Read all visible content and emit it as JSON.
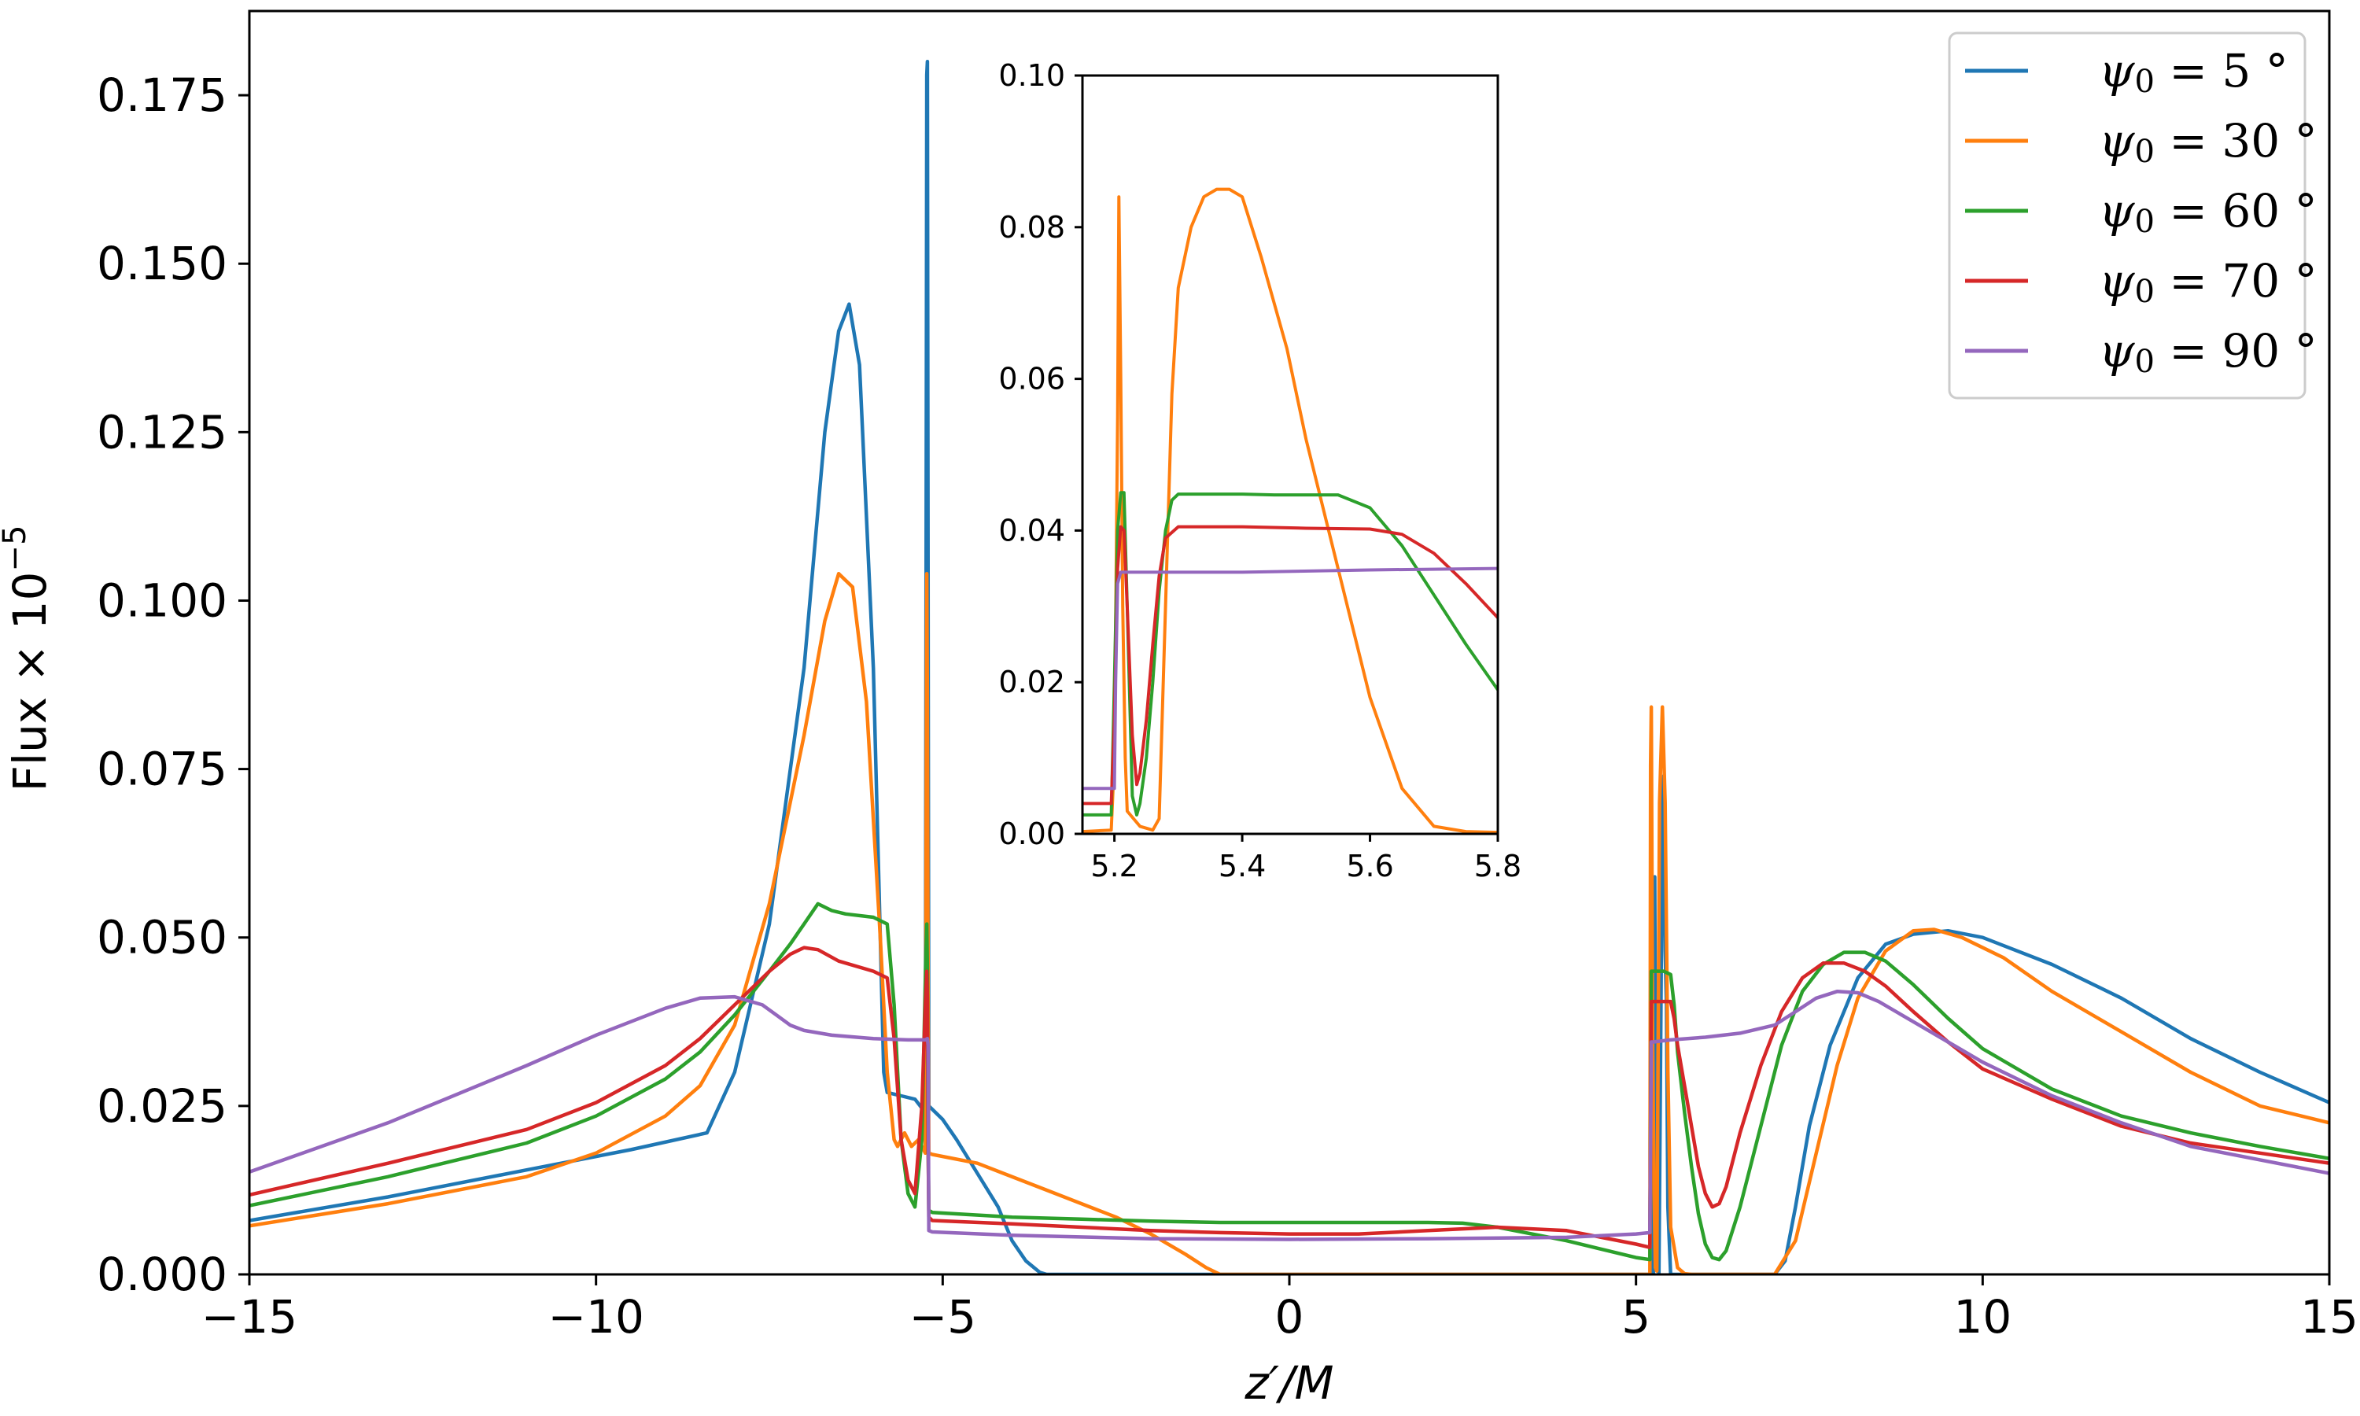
{
  "chart_data": [
    {
      "type": "line",
      "xlabel": "z′/M",
      "ylabel": "Flux × 10",
      "ylabel_exponent": "−5",
      "xlim": [
        -15,
        15
      ],
      "ylim": [
        0,
        0.1875
      ],
      "xticks": [
        -15,
        -10,
        -5,
        0,
        5,
        10,
        15
      ],
      "xtick_labels": [
        "−15",
        "−10",
        "−5",
        "0",
        "5",
        "10",
        "15"
      ],
      "yticks": [
        0,
        0.025,
        0.05,
        0.075,
        0.1,
        0.125,
        0.15,
        0.175
      ],
      "ytick_labels": [
        "0.000",
        "0.025",
        "0.050",
        "0.075",
        "0.100",
        "0.125",
        "0.150",
        "0.175"
      ],
      "grid": false,
      "legend_position": "top-right",
      "series": [
        {
          "name": "ψ0 = 5 °",
          "label_sym": "ψ",
          "label_sub": "0",
          "label_rest": " = 5 °",
          "color": "#1f77b4",
          "x": [
            -15,
            -13,
            -11,
            -9.5,
            -8.4,
            -8.0,
            -7.5,
            -7.0,
            -6.7,
            -6.5,
            -6.35,
            -6.2,
            -6.0,
            -5.9,
            -5.85,
            -5.8,
            -5.6,
            -5.4,
            -5.25,
            -5.23,
            -5.22,
            -5.21,
            -5.2,
            -5.15,
            -5.0,
            -4.8,
            -4.5,
            -4.2,
            -4.0,
            -3.8,
            -3.6,
            -3.5,
            0,
            5.0,
            5.25,
            5.27,
            5.29,
            5.31,
            5.33,
            5.36,
            5.38,
            5.4,
            5.42,
            5.44,
            5.46,
            5.5,
            6,
            7.0,
            7.15,
            7.3,
            7.5,
            7.8,
            8.2,
            8.6,
            9.0,
            9.5,
            10,
            11,
            12,
            13,
            14,
            15
          ],
          "y": [
            0.008,
            0.0115,
            0.0155,
            0.0185,
            0.021,
            0.03,
            0.052,
            0.09,
            0.125,
            0.14,
            0.144,
            0.135,
            0.09,
            0.05,
            0.03,
            0.027,
            0.0265,
            0.026,
            0.024,
            0.178,
            0.18,
            0.1,
            0.025,
            0.0245,
            0.023,
            0.02,
            0.015,
            0.01,
            0.005,
            0.002,
            0.0003,
            0,
            0,
            0,
            0,
            0.059,
            0.003,
            0.04,
            0,
            0.04,
            0.07,
            0.074,
            0.048,
            0.04,
            0.01,
            0,
            0,
            0,
            0.002,
            0.01,
            0.022,
            0.034,
            0.044,
            0.049,
            0.0505,
            0.051,
            0.05,
            0.046,
            0.041,
            0.035,
            0.03,
            0.0255
          ]
        },
        {
          "name": "ψ0 = 30 °",
          "label_sym": "ψ",
          "label_sub": "0",
          "label_rest": " = 30 °",
          "color": "#ff7f0e",
          "x": [
            -15,
            -13,
            -11,
            -10,
            -9,
            -8.5,
            -8.0,
            -7.5,
            -7.0,
            -6.7,
            -6.5,
            -6.3,
            -6.1,
            -5.9,
            -5.8,
            -5.7,
            -5.65,
            -5.55,
            -5.45,
            -5.35,
            -5.25,
            -5.23,
            -5.22,
            -5.21,
            -5.2,
            -5.15,
            -4.5,
            -3.5,
            -2.5,
            -2.0,
            -1.5,
            -1.2,
            -1.0,
            0,
            5.0,
            5.2,
            5.21,
            5.22,
            5.24,
            5.26,
            5.28,
            5.3,
            5.34,
            5.38,
            5.42,
            5.46,
            5.5,
            5.6,
            5.7,
            5.8,
            6.0,
            6.5,
            7.0,
            7.3,
            7.6,
            7.9,
            8.2,
            8.6,
            9.0,
            9.3,
            9.7,
            10.3,
            11,
            12,
            13,
            14,
            15
          ],
          "y": [
            0.0072,
            0.0105,
            0.0145,
            0.018,
            0.0235,
            0.028,
            0.037,
            0.055,
            0.08,
            0.097,
            0.104,
            0.102,
            0.085,
            0.05,
            0.03,
            0.02,
            0.019,
            0.021,
            0.019,
            0.02,
            0.018,
            0.104,
            0.085,
            0.04,
            0.018,
            0.0178,
            0.0165,
            0.0125,
            0.0085,
            0.006,
            0.003,
            0.001,
            0,
            0,
            0,
            0,
            0.0755,
            0.0842,
            0.035,
            0.012,
            0.001,
            0.0005,
            0.07,
            0.0842,
            0.07,
            0.03,
            0.007,
            0.001,
            0.0001,
            0,
            0,
            0,
            0,
            0.005,
            0.018,
            0.031,
            0.041,
            0.048,
            0.051,
            0.0512,
            0.05,
            0.047,
            0.042,
            0.036,
            0.03,
            0.025,
            0.0225
          ]
        },
        {
          "name": "ψ0 = 60 °",
          "label_sym": "ψ",
          "label_sub": "0",
          "label_rest": " = 60 °",
          "color": "#2ca02c",
          "x": [
            -15,
            -13,
            -11,
            -10,
            -9,
            -8.5,
            -8.0,
            -7.5,
            -7.2,
            -7.0,
            -6.8,
            -6.6,
            -6.4,
            -6.0,
            -5.8,
            -5.7,
            -5.6,
            -5.5,
            -5.4,
            -5.3,
            -5.25,
            -5.23,
            -5.22,
            -5.21,
            -5.2,
            -5.15,
            -4,
            -3,
            -2,
            -1,
            0,
            1,
            2,
            2.5,
            3,
            4,
            5.0,
            5.2,
            5.22,
            5.25,
            5.3,
            5.4,
            5.5,
            5.55,
            5.6,
            5.7,
            5.8,
            5.9,
            6.0,
            6.1,
            6.2,
            6.3,
            6.5,
            6.8,
            7.1,
            7.4,
            7.7,
            8.0,
            8.3,
            8.6,
            9.0,
            9.5,
            10,
            11,
            12,
            13,
            14,
            15
          ],
          "y": [
            0.0102,
            0.0145,
            0.0195,
            0.0235,
            0.029,
            0.033,
            0.0385,
            0.045,
            0.049,
            0.052,
            0.055,
            0.054,
            0.0535,
            0.053,
            0.052,
            0.04,
            0.02,
            0.012,
            0.01,
            0.02,
            0.044,
            0.052,
            0.045,
            0.02,
            0.0095,
            0.0092,
            0.0085,
            0.0082,
            0.0079,
            0.0077,
            0.0077,
            0.0077,
            0.0077,
            0.0076,
            0.007,
            0.005,
            0.0025,
            0.0022,
            0.045,
            0.045,
            0.045,
            0.045,
            0.0445,
            0.04,
            0.033,
            0.024,
            0.016,
            0.009,
            0.0045,
            0.0025,
            0.0022,
            0.0035,
            0.01,
            0.022,
            0.034,
            0.042,
            0.046,
            0.0478,
            0.0478,
            0.0465,
            0.043,
            0.038,
            0.0335,
            0.0275,
            0.0235,
            0.021,
            0.019,
            0.0172
          ]
        },
        {
          "name": "ψ0 = 70 °",
          "label_sym": "ψ",
          "label_sub": "0",
          "label_rest": " = 70 °",
          "color": "#d62728",
          "x": [
            -15,
            -13,
            -11,
            -10,
            -9,
            -8.5,
            -8.0,
            -7.5,
            -7.2,
            -7.0,
            -6.8,
            -6.5,
            -6.0,
            -5.8,
            -5.7,
            -5.6,
            -5.5,
            -5.4,
            -5.3,
            -5.25,
            -5.23,
            -5.22,
            -5.21,
            -5.2,
            -5.15,
            -4,
            -3,
            -2,
            -1,
            0,
            1,
            2,
            3,
            4,
            5.0,
            5.2,
            5.22,
            5.25,
            5.3,
            5.4,
            5.5,
            5.55,
            5.6,
            5.7,
            5.8,
            5.9,
            6.0,
            6.1,
            6.2,
            6.3,
            6.5,
            6.8,
            7.1,
            7.4,
            7.7,
            8.0,
            8.3,
            8.6,
            9.0,
            9.5,
            10,
            11,
            12,
            13,
            14,
            15
          ],
          "y": [
            0.0118,
            0.0165,
            0.0215,
            0.0255,
            0.031,
            0.035,
            0.04,
            0.045,
            0.0475,
            0.0485,
            0.0482,
            0.0465,
            0.045,
            0.044,
            0.035,
            0.02,
            0.014,
            0.012,
            0.025,
            0.04,
            0.045,
            0.041,
            0.02,
            0.0085,
            0.008,
            0.0075,
            0.007,
            0.0065,
            0.0062,
            0.006,
            0.006,
            0.0065,
            0.007,
            0.0065,
            0.0045,
            0.004,
            0.0405,
            0.0405,
            0.0405,
            0.0405,
            0.0405,
            0.038,
            0.034,
            0.028,
            0.022,
            0.016,
            0.012,
            0.01,
            0.0105,
            0.013,
            0.021,
            0.031,
            0.039,
            0.044,
            0.0462,
            0.0462,
            0.045,
            0.0428,
            0.039,
            0.0345,
            0.0305,
            0.026,
            0.022,
            0.0195,
            0.018,
            0.0165
          ]
        },
        {
          "name": "ψ0 = 90 °",
          "label_sym": "ψ",
          "label_sub": "0",
          "label_rest": " = 90 °",
          "color": "#9467bd",
          "x": [
            -15,
            -13,
            -11,
            -10,
            -9,
            -8.5,
            -8.0,
            -7.6,
            -7.4,
            -7.2,
            -7.0,
            -6.6,
            -6.0,
            -5.5,
            -5.25,
            -5.22,
            -5.21,
            -5.2,
            -5.15,
            -4,
            -2,
            0,
            2,
            4,
            5.0,
            5.2,
            5.21,
            5.22,
            5.25,
            5.5,
            6,
            6.5,
            7,
            7.3,
            7.6,
            7.9,
            8.2,
            8.5,
            9.0,
            9.5,
            10,
            11,
            12,
            13,
            14,
            15
          ],
          "y": [
            0.0152,
            0.0225,
            0.031,
            0.0355,
            0.0395,
            0.041,
            0.0412,
            0.04,
            0.0385,
            0.037,
            0.0362,
            0.0355,
            0.035,
            0.0348,
            0.0348,
            0.035,
            0.034,
            0.0065,
            0.0063,
            0.0058,
            0.0053,
            0.0052,
            0.0053,
            0.0055,
            0.006,
            0.0062,
            0.0195,
            0.0345,
            0.0345,
            0.0348,
            0.0352,
            0.0358,
            0.037,
            0.039,
            0.041,
            0.042,
            0.0418,
            0.0405,
            0.0375,
            0.0345,
            0.0315,
            0.0265,
            0.0225,
            0.019,
            0.017,
            0.015
          ]
        }
      ]
    },
    {
      "type": "line",
      "role": "inset",
      "xlim": [
        5.15,
        5.8
      ],
      "ylim": [
        0,
        0.1
      ],
      "xticks": [
        5.2,
        5.4,
        5.6,
        5.8
      ],
      "xtick_labels": [
        "5.2",
        "5.4",
        "5.6",
        "5.8"
      ],
      "yticks": [
        0,
        0.02,
        0.04,
        0.06,
        0.08,
        0.1
      ],
      "ytick_labels": [
        "0.00",
        "0.02",
        "0.04",
        "0.06",
        "0.08",
        "0.10"
      ],
      "series": [
        {
          "color": "#ff7f0e",
          "x": [
            5.15,
            5.195,
            5.2,
            5.205,
            5.207,
            5.21,
            5.213,
            5.217,
            5.22,
            5.24,
            5.26,
            5.27,
            5.28,
            5.29,
            5.3,
            5.32,
            5.34,
            5.36,
            5.38,
            5.4,
            5.43,
            5.47,
            5.5,
            5.55,
            5.6,
            5.65,
            5.7,
            5.75,
            5.8
          ],
          "y": [
            0.0003,
            0.0005,
            0.01,
            0.055,
            0.084,
            0.06,
            0.03,
            0.01,
            0.003,
            0.001,
            0.0005,
            0.002,
            0.03,
            0.058,
            0.072,
            0.08,
            0.084,
            0.085,
            0.085,
            0.084,
            0.076,
            0.064,
            0.052,
            0.035,
            0.018,
            0.006,
            0.001,
            0.0003,
            0.0002
          ]
        },
        {
          "color": "#2ca02c",
          "x": [
            5.15,
            5.195,
            5.2,
            5.205,
            5.21,
            5.215,
            5.22,
            5.228,
            5.235,
            5.24,
            5.25,
            5.26,
            5.27,
            5.28,
            5.29,
            5.3,
            5.35,
            5.4,
            5.45,
            5.5,
            5.55,
            5.6,
            5.65,
            5.7,
            5.75,
            5.8
          ],
          "y": [
            0.0025,
            0.0025,
            0.02,
            0.04,
            0.045,
            0.045,
            0.03,
            0.005,
            0.0025,
            0.004,
            0.01,
            0.02,
            0.032,
            0.04,
            0.044,
            0.0448,
            0.0448,
            0.0448,
            0.0447,
            0.0447,
            0.0447,
            0.043,
            0.038,
            0.0315,
            0.025,
            0.019
          ]
        },
        {
          "color": "#d62728",
          "x": [
            5.15,
            5.195,
            5.2,
            5.205,
            5.21,
            5.215,
            5.22,
            5.228,
            5.235,
            5.24,
            5.25,
            5.26,
            5.27,
            5.28,
            5.3,
            5.35,
            5.4,
            5.5,
            5.6,
            5.65,
            5.7,
            5.75,
            5.8
          ],
          "y": [
            0.004,
            0.004,
            0.015,
            0.035,
            0.0405,
            0.04,
            0.03,
            0.013,
            0.0065,
            0.008,
            0.015,
            0.025,
            0.034,
            0.039,
            0.0405,
            0.0405,
            0.0405,
            0.0403,
            0.0402,
            0.0395,
            0.037,
            0.033,
            0.0285
          ]
        },
        {
          "color": "#9467bd",
          "x": [
            5.15,
            5.19,
            5.2,
            5.202,
            5.205,
            5.21,
            5.4,
            5.6,
            5.8
          ],
          "y": [
            0.006,
            0.006,
            0.006,
            0.02,
            0.033,
            0.0345,
            0.0345,
            0.0348,
            0.035
          ]
        }
      ]
    }
  ]
}
